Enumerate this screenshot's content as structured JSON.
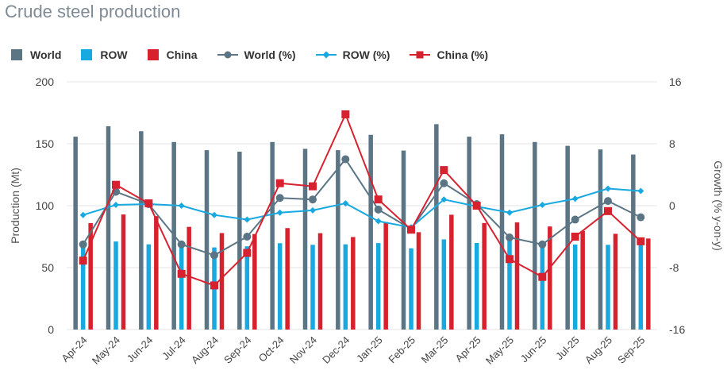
{
  "title": "Crude steel production",
  "legend": [
    {
      "label": "World",
      "kind": "bar",
      "color": "#5b7585"
    },
    {
      "label": "ROW",
      "kind": "bar",
      "color": "#19a9e1"
    },
    {
      "label": "China",
      "kind": "bar",
      "color": "#d7212f"
    },
    {
      "label": "World (%)",
      "kind": "line-circle",
      "color": "#5b7585"
    },
    {
      "label": "ROW (%)",
      "kind": "line-diamond",
      "color": "#19a9e1"
    },
    {
      "label": "China (%)",
      "kind": "line-square",
      "color": "#d7212f"
    }
  ],
  "chart_data": {
    "type": "bar",
    "title": "Crude steel production",
    "categories": [
      "Apr-24",
      "May-24",
      "Jun-24",
      "Jul-24",
      "Aug-24",
      "Sep-24",
      "Oct-24",
      "Nov-24",
      "Dec-24",
      "Jan-25",
      "Feb-25",
      "Mar-25",
      "Apr-25",
      "May-25",
      "Jun-25",
      "Jul-25",
      "Aug-25",
      "Sep-25"
    ],
    "ylabel": "Production (Mt)",
    "ylim": [
      0,
      200
    ],
    "yticks": [
      0,
      50,
      100,
      150,
      200
    ],
    "y2label": "Growth (% y-on-y)",
    "y2lim": [
      -16,
      16
    ],
    "y2ticks": [
      -16,
      -8,
      0,
      8,
      16
    ],
    "grid": true,
    "legend_position": "top-left",
    "series": [
      {
        "name": "World",
        "type": "bar",
        "axis": "left",
        "color": "#5b7585",
        "values": [
          155.7,
          164.1,
          160.1,
          151.4,
          144.8,
          143.6,
          151.4,
          145.9,
          144.8,
          157.2,
          144.5,
          165.8,
          155.7,
          157.6,
          151.4,
          148.3,
          145.4,
          141.3
        ]
      },
      {
        "name": "ROW",
        "type": "bar",
        "axis": "left",
        "color": "#19a9e1",
        "values": [
          69.5,
          71.1,
          68.8,
          67.9,
          66.3,
          67.2,
          69.7,
          68.4,
          68.8,
          69.8,
          65.6,
          72.8,
          69.9,
          71.8,
          68.5,
          68.7,
          68.4,
          69.5
        ]
      },
      {
        "name": "China",
        "type": "bar",
        "axis": "left",
        "color": "#d7212f",
        "values": [
          85.9,
          92.9,
          91.6,
          82.9,
          77.9,
          77.1,
          81.9,
          77.8,
          74.7,
          86.8,
          78.6,
          92.7,
          86.0,
          86.5,
          83.2,
          79.6,
          77.3,
          73.5
        ]
      },
      {
        "name": "World (%)",
        "type": "line",
        "axis": "right",
        "color": "#5b7585",
        "marker": "circle",
        "values": [
          -5.0,
          1.8,
          0.2,
          -5.0,
          -6.4,
          -4.0,
          1.0,
          0.8,
          6.0,
          -0.5,
          -3.0,
          2.9,
          0.2,
          -4.1,
          -5.0,
          -1.8,
          0.6,
          -1.5
        ]
      },
      {
        "name": "ROW (%)",
        "type": "line",
        "axis": "right",
        "color": "#19a9e1",
        "marker": "diamond",
        "values": [
          -1.2,
          0.1,
          0.2,
          0.0,
          -1.2,
          -1.8,
          -0.9,
          -0.6,
          0.3,
          -2.0,
          -2.8,
          0.8,
          -0.1,
          -0.9,
          0.1,
          0.9,
          2.2,
          1.9
        ]
      },
      {
        "name": "China (%)",
        "type": "line",
        "axis": "right",
        "color": "#d7212f",
        "marker": "square",
        "values": [
          -7.1,
          2.7,
          0.3,
          -8.8,
          -10.3,
          -6.1,
          2.9,
          2.5,
          11.8,
          0.8,
          -3.1,
          4.6,
          0.0,
          -6.9,
          -9.2,
          -4.0,
          -0.7,
          -4.6
        ]
      }
    ]
  }
}
